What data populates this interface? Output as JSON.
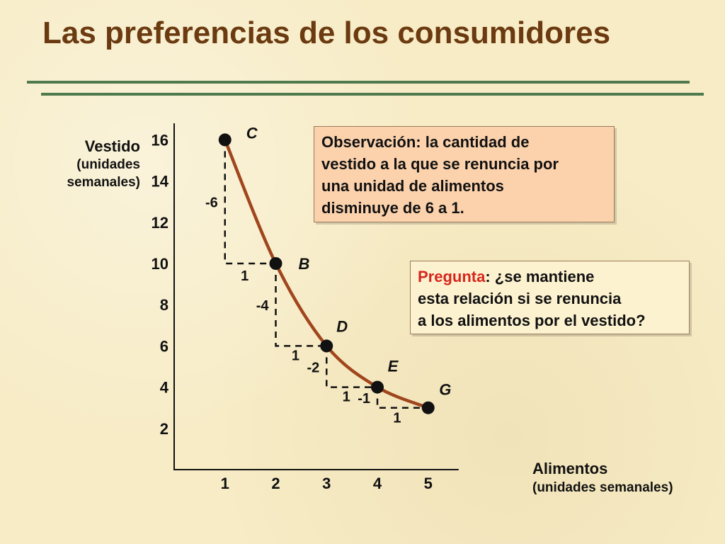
{
  "slide": {
    "title": "Las preferencias de los consumidores"
  },
  "colors": {
    "title": "#6b3a10",
    "rule": "#4f7a4e",
    "curve": "#a0461d",
    "box_fill": "#fcd2ad",
    "question_word": "#d6261c"
  },
  "observation_box": {
    "lines": [
      "Observación: la cantidad de",
      "vestido a la que se renuncia por",
      "una unidad de alimentos",
      "disminuye de 6 a 1."
    ]
  },
  "question_box": {
    "keyword": "Pregunta",
    "line1_rest": ": ¿se mantiene",
    "line2": "esta relación si se renuncia",
    "line3": "a los alimentos por el vestido?"
  },
  "chart_data": {
    "type": "line",
    "ylabel_line1": "Vestido",
    "ylabel_line2": "(unidades",
    "ylabel_line3": "semanales)",
    "xlabel_line1": "Alimentos",
    "xlabel_line2": "(unidades semanales)",
    "xlim": [
      0,
      5.6
    ],
    "ylim": [
      0,
      16.8
    ],
    "x_ticks": [
      "1",
      "2",
      "3",
      "4",
      "5"
    ],
    "y_ticks": [
      "2",
      "4",
      "6",
      "8",
      "10",
      "12",
      "14",
      "16"
    ],
    "points": [
      {
        "label": "C",
        "x": 1,
        "y": 16
      },
      {
        "label": "B",
        "x": 2,
        "y": 10
      },
      {
        "label": "D",
        "x": 3,
        "y": 6
      },
      {
        "label": "E",
        "x": 4,
        "y": 4
      },
      {
        "label": "G",
        "x": 5,
        "y": 3
      }
    ],
    "steps": [
      {
        "from": [
          1,
          16
        ],
        "to": [
          2,
          10
        ],
        "dy_label": "-6",
        "dx_label": "1"
      },
      {
        "from": [
          2,
          10
        ],
        "to": [
          3,
          6
        ],
        "dy_label": "-4",
        "dx_label": "1"
      },
      {
        "from": [
          3,
          6
        ],
        "to": [
          4,
          4
        ],
        "dy_label": "-2",
        "dx_label": "1"
      },
      {
        "from": [
          4,
          4
        ],
        "to": [
          5,
          3
        ],
        "dy_label": "-1",
        "dx_label": "1"
      }
    ]
  }
}
